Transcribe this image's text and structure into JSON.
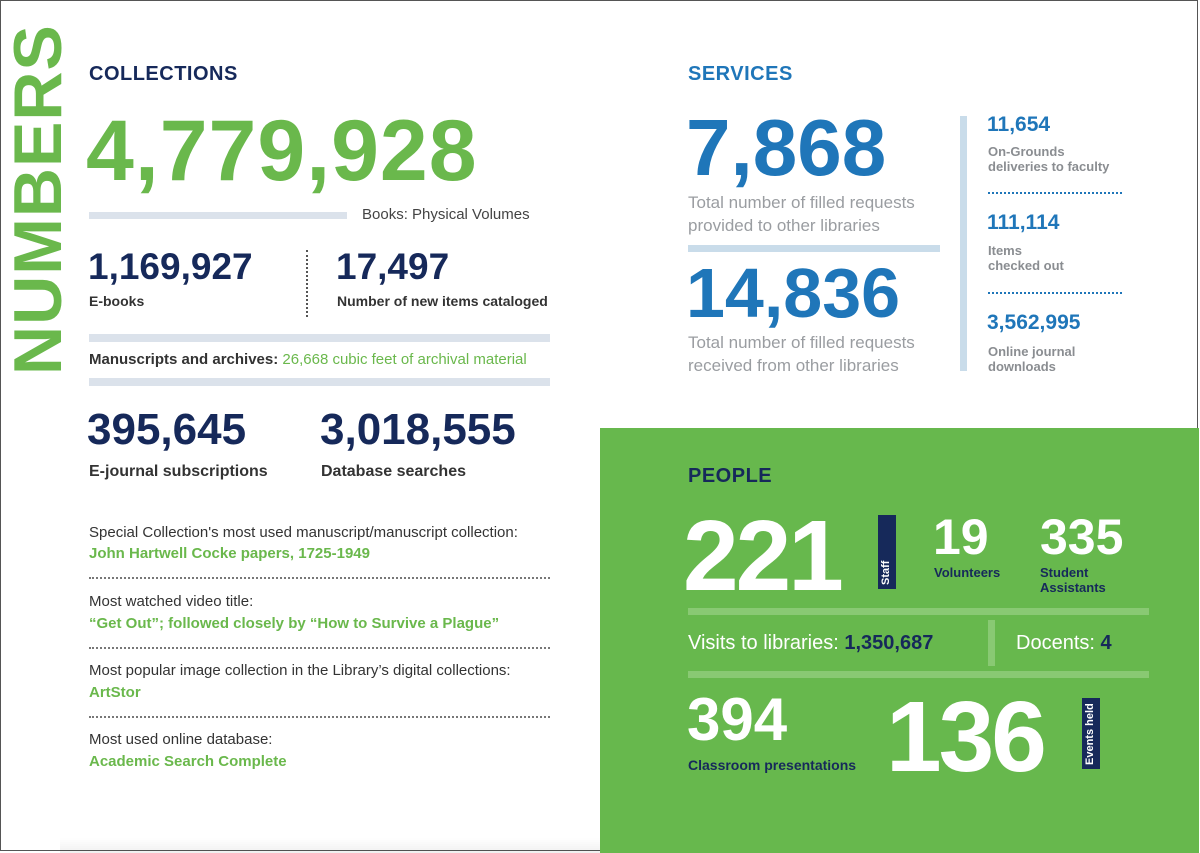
{
  "side_title": "NUMBERS",
  "collections": {
    "heading": "COLLECTIONS",
    "books_value": "4,779,928",
    "books_label": "Books: Physical Volumes",
    "ebooks_value": "1,169,927",
    "ebooks_label": "E-books",
    "new_items_value": "17,497",
    "new_items_label": "Number of new items cataloged",
    "manuscripts_label": "Manuscripts and archives:",
    "manuscripts_value": "26,668 cubic feet of archival material",
    "ejournal_value": "395,645",
    "ejournal_label": "E-journal subscriptions",
    "db_value": "3,018,555",
    "db_label": "Database searches"
  },
  "facts": [
    {
      "question": "Special Collection's most used manuscript/manuscript collection:",
      "answer": "John Hartwell Cocke papers, 1725-1949"
    },
    {
      "question": "Most watched video title:",
      "answer": "“Get Out”; followed closely by “How to Survive a Plague”"
    },
    {
      "question": "Most popular image collection in the Library’s digital collections:",
      "answer": "ArtStor"
    },
    {
      "question": "Most used online database:",
      "answer": "Academic Search Complete"
    }
  ],
  "services": {
    "heading": "SERVICES",
    "provided_value": "7,868",
    "provided_line1": "Total number of filled requests",
    "provided_line2": "provided to other libraries",
    "received_value": "14,836",
    "received_line1": "Total number of filled requests",
    "received_line2": "received from other libraries",
    "deliveries_value": "11,654",
    "deliveries_line1": "On-Grounds",
    "deliveries_line2": "deliveries to faculty",
    "checkout_value": "111,114",
    "checkout_line1": "Items",
    "checkout_line2": "checked out",
    "downloads_value": "3,562,995",
    "downloads_line1": "Online journal",
    "downloads_line2": "downloads"
  },
  "people": {
    "heading": "PEOPLE",
    "staff_value": "221",
    "staff_label": "Staff",
    "volunteers_value": "19",
    "volunteers_label": "Volunteers",
    "students_value": "335",
    "students_line1": "Student",
    "students_line2": "Assistants",
    "visits_label": "Visits to libraries:",
    "visits_value": "1,350,687",
    "docents_label": "Docents:",
    "docents_value": "4",
    "classroom_value": "394",
    "classroom_label": "Classroom presentations",
    "events_value": "136",
    "events_label": "Events held"
  },
  "colors": {
    "green": "#6ab84c",
    "navy": "#16295a",
    "blue": "#1f76b9",
    "panel": "#67b84d"
  }
}
